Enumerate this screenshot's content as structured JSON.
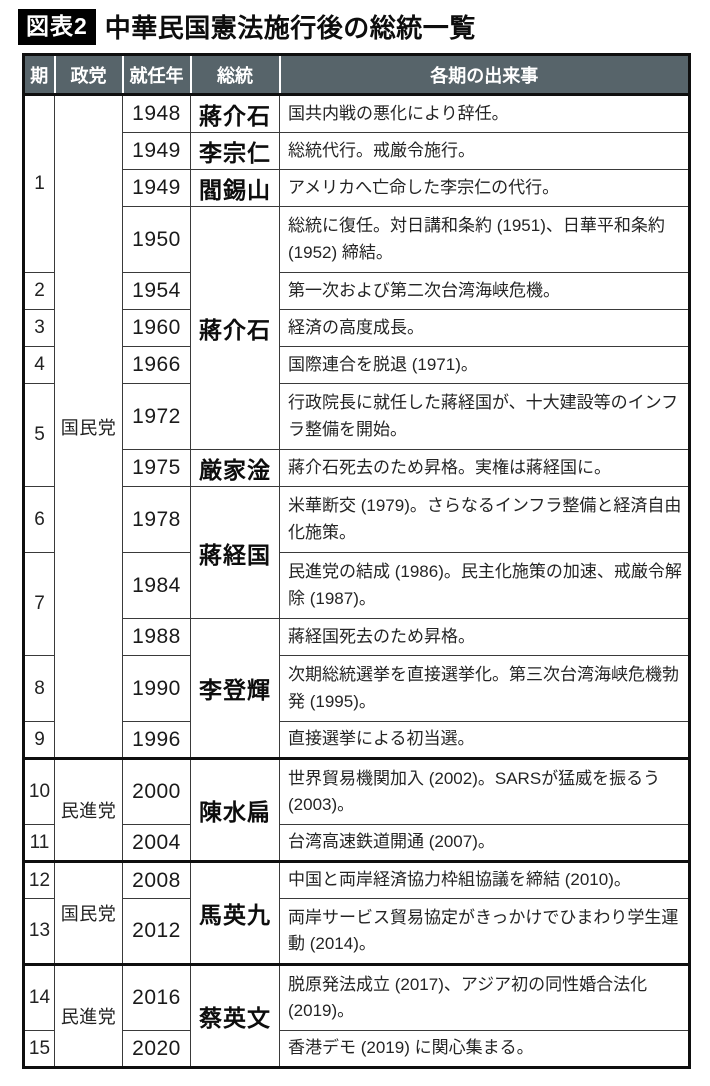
{
  "figure": {
    "badge": "図表2",
    "title": "中華民国憲法施行後の総統一覧"
  },
  "colors": {
    "header_bg": "#57646a",
    "header_text": "#ffffff",
    "badge_bg": "#000000",
    "badge_text": "#ffffff",
    "border": "#0f0f0f"
  },
  "table": {
    "headers": [
      "期",
      "政党",
      "就任年",
      "総統",
      "各期の出来事"
    ],
    "rows": [
      {
        "period": "1",
        "period_rowspan": 4,
        "party": "国民党",
        "party_rowspan": 14,
        "year": "1948",
        "president": "蔣介石",
        "president_rowspan": 1,
        "event": "国共内戦の悪化により辞任。",
        "lines": 1,
        "group_start": false
      },
      {
        "period": null,
        "party": null,
        "year": "1949",
        "president": "李宗仁",
        "president_rowspan": 1,
        "event": "総統代行。戒厳令施行。",
        "lines": 1,
        "group_start": false
      },
      {
        "period": null,
        "party": null,
        "year": "1949",
        "president": "閻錫山",
        "president_rowspan": 1,
        "event": "アメリカへ亡命した李宗仁の代行。",
        "lines": 1,
        "group_start": false
      },
      {
        "period": null,
        "party": null,
        "year": "1950",
        "president": "蔣介石",
        "president_rowspan": 5,
        "event": "総統に復任。対日講和条約 (1951)、日華平和条約 (1952) 締結。",
        "lines": 2,
        "group_start": false
      },
      {
        "period": "2",
        "period_rowspan": 1,
        "party": null,
        "year": "1954",
        "president": null,
        "event": "第一次および第二次台湾海峡危機。",
        "lines": 1,
        "group_start": false
      },
      {
        "period": "3",
        "period_rowspan": 1,
        "party": null,
        "year": "1960",
        "president": null,
        "event": "経済の高度成長。",
        "lines": 1,
        "group_start": false
      },
      {
        "period": "4",
        "period_rowspan": 1,
        "party": null,
        "year": "1966",
        "president": null,
        "event": "国際連合を脱退 (1971)。",
        "lines": 1,
        "group_start": false
      },
      {
        "period": "5",
        "period_rowspan": 2,
        "party": null,
        "year": "1972",
        "president": null,
        "event": "行政院長に就任した蔣経国が、十大建設等のインフラ整備を開始。",
        "lines": 2,
        "group_start": false
      },
      {
        "period": null,
        "party": null,
        "year": "1975",
        "president": "厳家淦",
        "president_rowspan": 1,
        "event": "蔣介石死去のため昇格。実権は蔣経国に。",
        "lines": 1,
        "group_start": false
      },
      {
        "period": "6",
        "period_rowspan": 1,
        "party": null,
        "year": "1978",
        "president": "蔣経国",
        "president_rowspan": 2,
        "event": "米華断交 (1979)。さらなるインフラ整備と経済自由化施策。",
        "lines": 2,
        "group_start": false
      },
      {
        "period": "7",
        "period_rowspan": 2,
        "party": null,
        "year": "1984",
        "president": null,
        "event": "民進党の結成 (1986)。民主化施策の加速、戒厳令解除 (1987)。",
        "lines": 2,
        "group_start": false
      },
      {
        "period": null,
        "party": null,
        "year": "1988",
        "president": "李登輝",
        "president_rowspan": 3,
        "event": "蔣経国死去のため昇格。",
        "lines": 1,
        "group_start": false
      },
      {
        "period": "8",
        "period_rowspan": 1,
        "party": null,
        "year": "1990",
        "president": null,
        "event": "次期総統選挙を直接選挙化。第三次台湾海峡危機勃発 (1995)。",
        "lines": 2,
        "group_start": false
      },
      {
        "period": "9",
        "period_rowspan": 1,
        "party": null,
        "year": "1996",
        "president": null,
        "event": "直接選挙による初当選。",
        "lines": 1,
        "group_start": false
      },
      {
        "period": "10",
        "period_rowspan": 1,
        "party": "民進党",
        "party_rowspan": 2,
        "year": "2000",
        "president": "陳水扁",
        "president_rowspan": 2,
        "event": "世界貿易機関加入 (2002)。SARSが猛威を振るう (2003)。",
        "lines": 2,
        "group_start": true
      },
      {
        "period": "11",
        "period_rowspan": 1,
        "party": null,
        "year": "2004",
        "president": null,
        "event": "台湾高速鉄道開通 (2007)。",
        "lines": 1,
        "group_start": false
      },
      {
        "period": "12",
        "period_rowspan": 1,
        "party": "国民党",
        "party_rowspan": 2,
        "year": "2008",
        "president": "馬英九",
        "president_rowspan": 2,
        "event": "中国と両岸経済協力枠組協議を締結 (2010)。",
        "lines": 1,
        "group_start": true
      },
      {
        "period": "13",
        "period_rowspan": 1,
        "party": null,
        "year": "2012",
        "president": null,
        "event": "両岸サービス貿易協定がきっかけでひまわり学生運動 (2014)。",
        "lines": 2,
        "group_start": false
      },
      {
        "period": "14",
        "period_rowspan": 1,
        "party": "民進党",
        "party_rowspan": 2,
        "year": "2016",
        "president": "蔡英文",
        "president_rowspan": 2,
        "event": "脱原発法成立 (2017)、アジア初の同性婚合法化 (2019)。",
        "lines": 2,
        "group_start": true
      },
      {
        "period": "15",
        "period_rowspan": 1,
        "party": null,
        "year": "2020",
        "president": null,
        "event": "香港デモ (2019) に関心集まる。",
        "lines": 1,
        "group_start": false
      }
    ]
  }
}
